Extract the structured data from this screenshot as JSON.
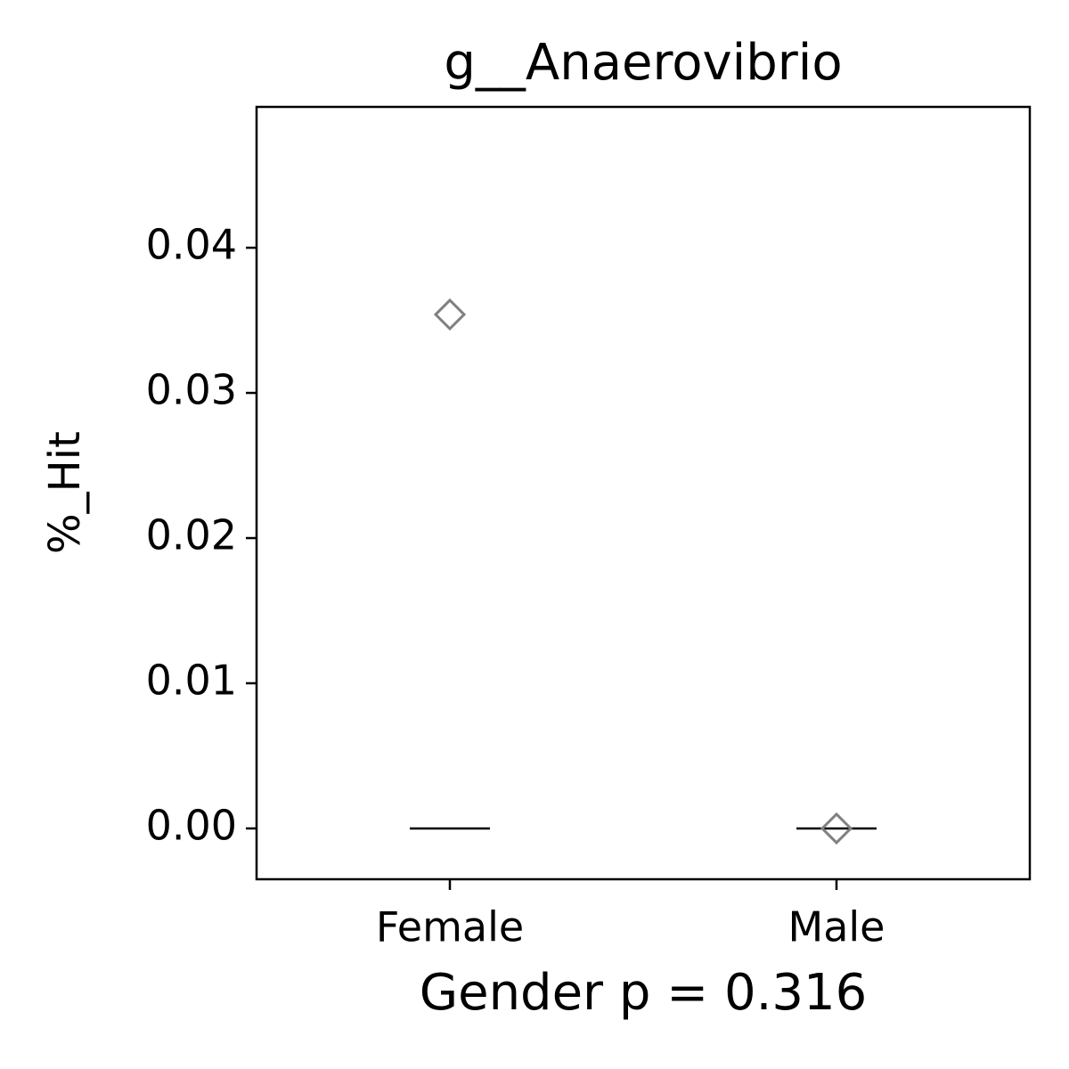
{
  "chart_data": {
    "type": "box",
    "title": "g__Anaerovibrio",
    "x_label": "Gender p = 0.316",
    "y_label": "%_Hit",
    "categories": [
      "Female",
      "Male"
    ],
    "medians": [
      0,
      0
    ],
    "outliers": [
      [
        0.0354
      ],
      [
        0
      ]
    ],
    "median_color": "#000000",
    "outlier_color": "#808080",
    "ylim": [
      -0.0035,
      0.0497
    ],
    "yticks": [
      {
        "value": 0,
        "label": "0.00"
      },
      {
        "value": 0.01,
        "label": "0.01"
      },
      {
        "value": 0.02,
        "label": "0.02"
      },
      {
        "value": 0.03,
        "label": "0.03"
      },
      {
        "value": 0.04,
        "label": "0.04"
      }
    ]
  }
}
